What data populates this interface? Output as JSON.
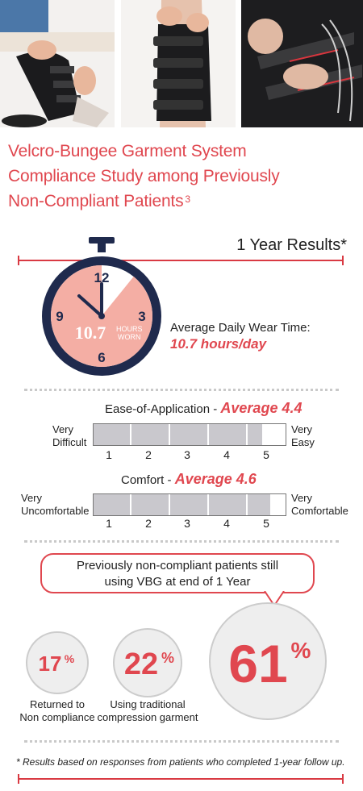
{
  "title": {
    "line1": "Velcro-Bungee Garment System",
    "line2": "Compliance Study among Previously",
    "line3": "Non-Compliant Patients",
    "superscript": "3"
  },
  "results_header": "1 Year Results*",
  "stopwatch": {
    "numbers": {
      "n12": "12",
      "n3": "3",
      "n6": "6",
      "n9": "9"
    },
    "value": "10.7",
    "unit_line1": "HOURS",
    "unit_line2": "WORN",
    "hours_value": 10.7
  },
  "wear_time": {
    "label": "Average Daily Wear Time:",
    "value": "10.7 hours/day"
  },
  "ease": {
    "title": "Ease-of-Application - ",
    "average": "Average 4.4",
    "value": 4.4,
    "left_label": [
      "Very",
      "Difficult"
    ],
    "right_label": [
      "Very",
      "Easy"
    ],
    "ticks": [
      "1",
      "2",
      "3",
      "4",
      "5"
    ]
  },
  "comfort": {
    "title": "Comfort - ",
    "average": "Average 4.6",
    "value": 4.6,
    "left_label": [
      "Very",
      "Uncomfortable"
    ],
    "right_label": [
      "Very",
      "Comfortable"
    ],
    "ticks": [
      "1",
      "2",
      "3",
      "4",
      "5"
    ]
  },
  "bubble": {
    "line1": "Previously non-compliant patients still",
    "line2": "using VBG at end of 1 Year"
  },
  "stats": {
    "returned": {
      "value": "17",
      "pct": "%",
      "label1": "Returned to",
      "label2": "Non compliance"
    },
    "traditional": {
      "value": "22",
      "pct": "%",
      "label1": "Using traditional",
      "label2": "compression garment"
    },
    "vbg": {
      "value": "61",
      "pct": "%"
    }
  },
  "footnote": "* Results based on responses from patients who completed 1-year follow up.",
  "colors": {
    "accent": "#e0474f",
    "navy": "#1f2a4d",
    "pink": "#f4aea4",
    "bar_fill": "#c9c8cd",
    "circle": "#eeeeee"
  },
  "photos": [
    {
      "icon": "photo-seated-leg-wrap"
    },
    {
      "icon": "photo-leg-wrap-standing"
    },
    {
      "icon": "photo-strap-closeup"
    }
  ]
}
